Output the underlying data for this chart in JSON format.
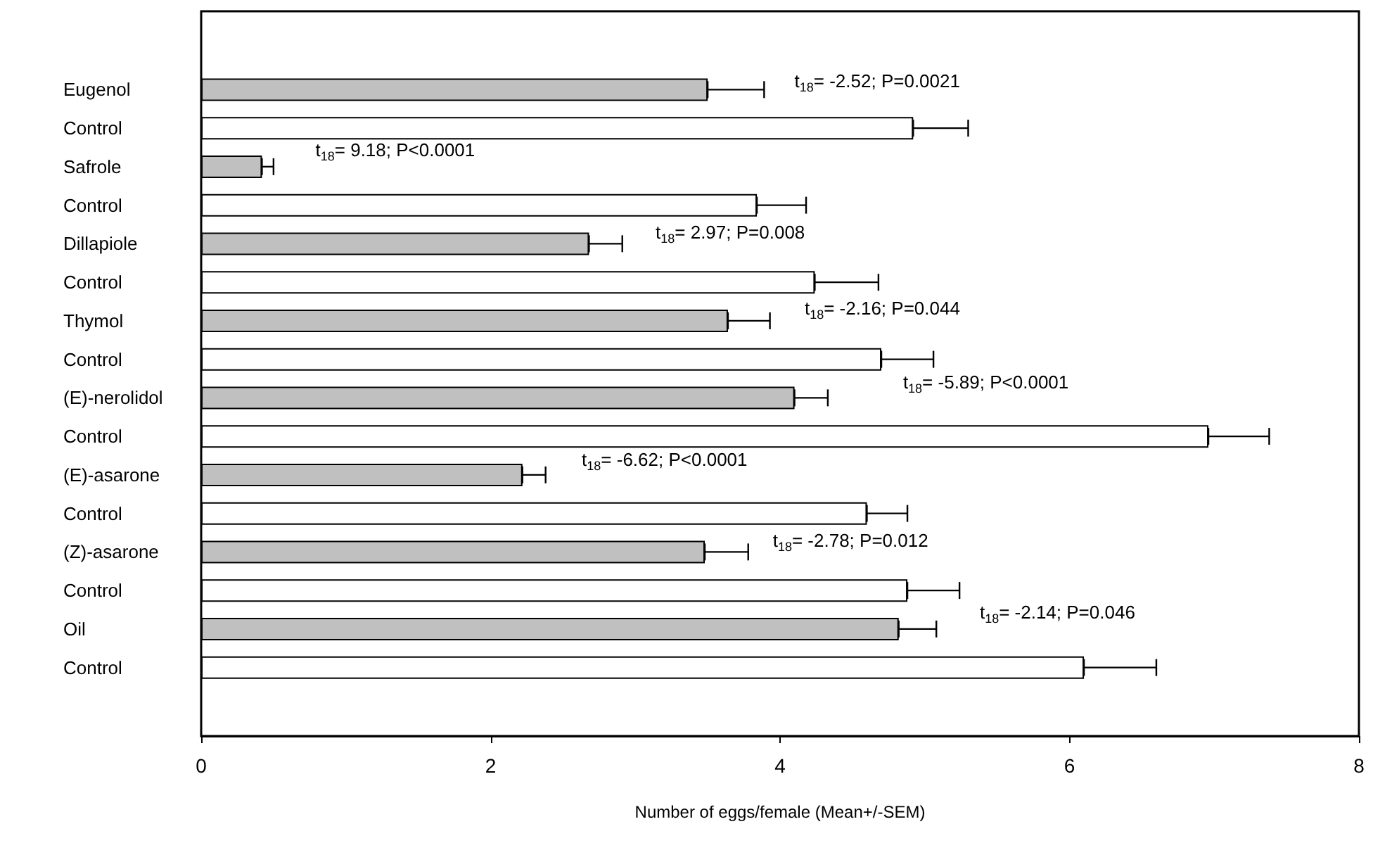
{
  "chart_data": {
    "type": "bar",
    "orientation": "horizontal",
    "xlabel": "Number of eggs/female (Mean+/-SEM)",
    "categories": [
      "Eugenol",
      "Control",
      "Safrole",
      "Control",
      "Dillapiole",
      "Control",
      "Thymol",
      "Control",
      "(E)-nerolidol",
      "Control",
      "(E)-asarone",
      "Control",
      "(Z)-asarone",
      "Control",
      "Oil",
      "Control"
    ],
    "values": [
      3.5,
      4.92,
      0.42,
      3.84,
      2.68,
      4.24,
      3.64,
      4.7,
      4.1,
      6.96,
      2.22,
      4.6,
      3.48,
      4.88,
      4.82,
      6.1
    ],
    "colors": [
      "#c0c0c0",
      "#ffffff",
      "#c0c0c0",
      "#ffffff",
      "#c0c0c0",
      "#ffffff",
      "#c0c0c0",
      "#ffffff",
      "#c0c0c0",
      "#ffffff",
      "#c0c0c0",
      "#ffffff",
      "#c0c0c0",
      "#ffffff",
      "#c0c0c0",
      "#ffffff"
    ],
    "errors": [
      [
        3.5,
        3.89
      ],
      [
        4.92,
        5.3
      ],
      [
        0.42,
        0.5
      ],
      [
        3.84,
        4.18
      ],
      [
        2.68,
        2.91
      ],
      [
        4.24,
        4.68
      ],
      [
        3.64,
        3.93
      ],
      [
        4.7,
        5.06
      ],
      [
        4.1,
        4.33
      ],
      [
        6.96,
        7.38
      ],
      [
        2.22,
        2.38
      ],
      [
        4.6,
        4.88
      ],
      [
        3.48,
        3.78
      ],
      [
        4.88,
        5.24
      ],
      [
        4.82,
        5.08
      ],
      [
        6.1,
        6.6
      ]
    ],
    "xlim": [
      0,
      8
    ],
    "xticks": [
      0,
      2,
      4,
      6,
      8
    ],
    "annotations": [
      "t$_{18}$= -2.52; P=0.0021",
      "t$_{18}$= 9.18; P<0.0001",
      "t$_{18}$= 2.97; P=0.008",
      "t$_{18}$= -2.16; P=0.044",
      "t$_{18}$= -5.89; P<0.0001",
      "t$_{18}$= -6.62; P<0.0001",
      "t$_{18}$= -2.78; P=0.012",
      "t$_{18}$= -2.14; P=0.046"
    ]
  }
}
